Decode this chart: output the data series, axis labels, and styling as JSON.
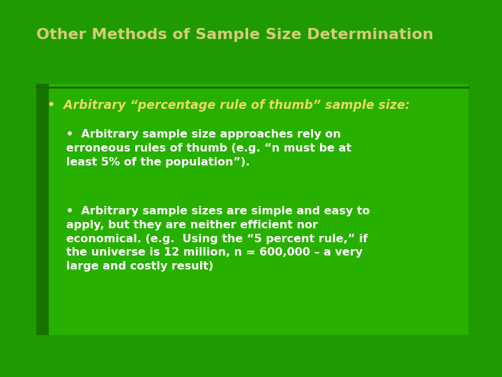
{
  "title": "Other Methods of Sample Size Determination",
  "title_color": "#D4CC7A",
  "title_fontsize": 16,
  "bg_color": "#1F9A00",
  "content_box_color": "#28B000",
  "sidebar_color": "#177300",
  "line_color": "#156800",
  "bullet1_text": "Arbitrary “percentage rule of thumb” sample size:",
  "bullet1_color": "#E8D96A",
  "bullet1_fontsize": 12.5,
  "sub_bullet1": "Arbitrary sample size approaches rely on\nerroneous rules of thumb (e.g. “n must be at\nleast 5% of the population”).",
  "sub_bullet2": "Arbitrary sample sizes are simple and easy to\napply, but they are neither efficient nor\neconomical. (e.g.  Using the “5 percent rule,” if\nthe universe is 12 million, n = 600,000 – a very\nlarge and costly result)",
  "sub_bullet_color": "#FFFFFF",
  "sub_bullet_fontsize": 11.5,
  "fig_width": 7.2,
  "fig_height": 5.4,
  "dpi": 100
}
